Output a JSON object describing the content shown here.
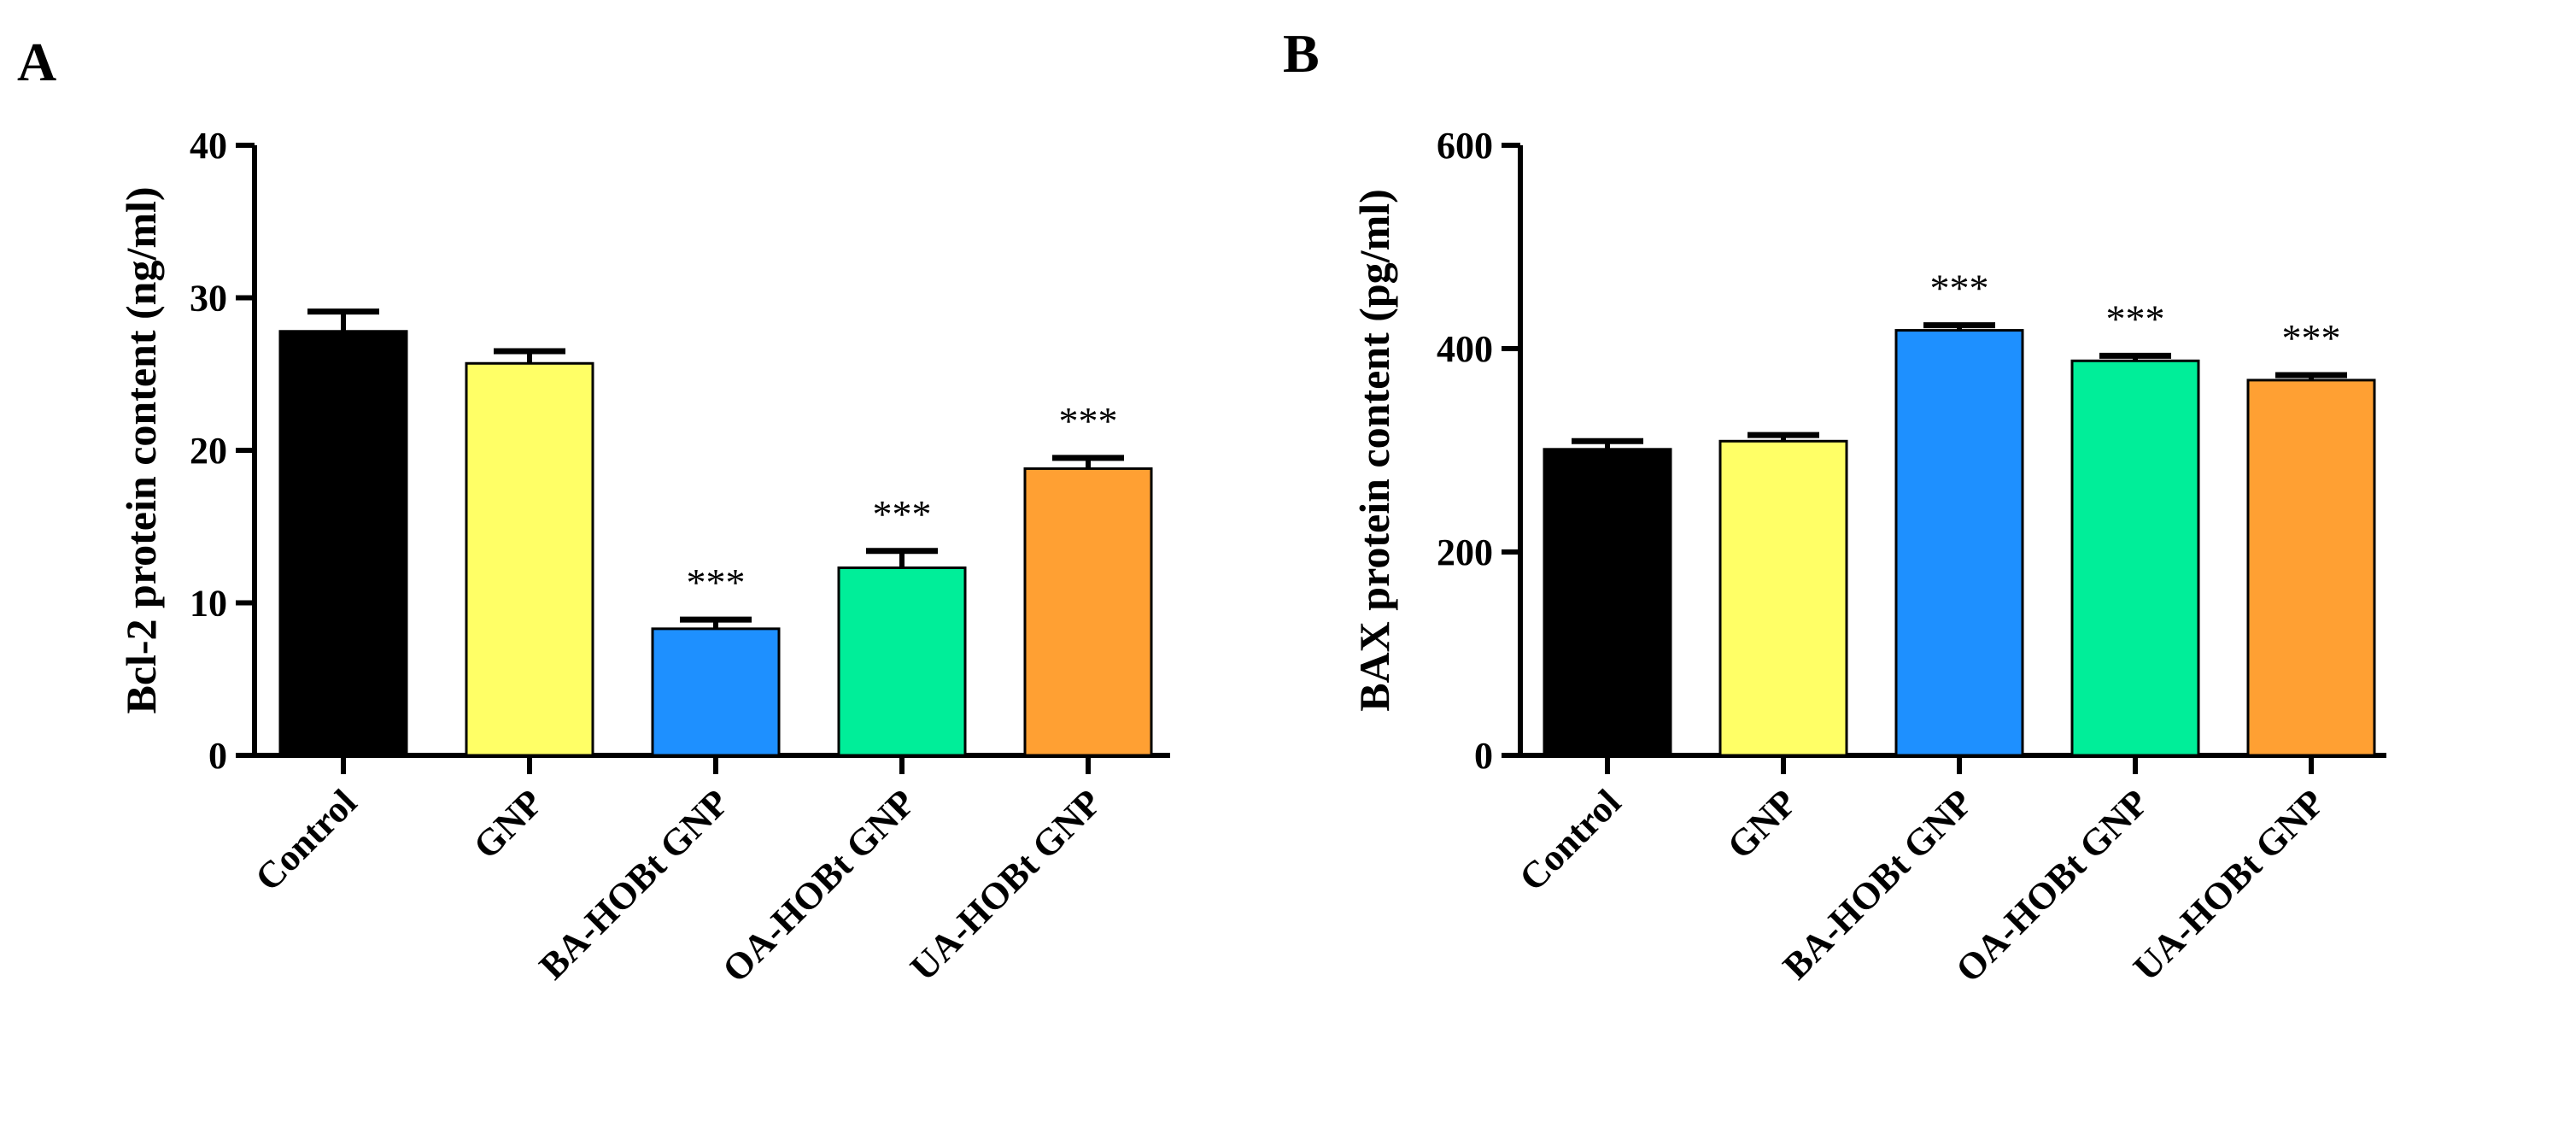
{
  "chart_data": [
    {
      "type": "bar",
      "panel": "A",
      "categories": [
        "Control",
        "GNP",
        "BA-HOBt GNP",
        "OA-HOBt GNP",
        "UA-HOBt GNP"
      ],
      "values": [
        27.8,
        25.7,
        8.3,
        12.3,
        18.8
      ],
      "errors": [
        1.3,
        0.8,
        0.6,
        1.1,
        0.7
      ],
      "colors": [
        "#000000",
        "#ffff66",
        "#1e90ff",
        "#00ee99",
        "#ffa033"
      ],
      "significance": [
        "",
        "",
        "***",
        "***",
        "***"
      ],
      "title": "",
      "xlabel": "",
      "ylabel": "Bcl-2 protein content (ng/ml)",
      "ylim": [
        0,
        40
      ],
      "yticks": [
        0,
        10,
        20,
        30,
        40
      ],
      "grid": false,
      "legend": "none"
    },
    {
      "type": "bar",
      "panel": "B",
      "categories": [
        "Control",
        "GNP",
        "BA-HOBt GNP",
        "OA-HOBt GNP",
        "UA-HOBt GNP"
      ],
      "values": [
        301,
        309,
        418,
        388,
        369
      ],
      "errors": [
        8,
        6,
        5,
        5,
        5
      ],
      "colors": [
        "#000000",
        "#ffff66",
        "#1e90ff",
        "#00ee99",
        "#ffa033"
      ],
      "significance": [
        "",
        "",
        "***",
        "***",
        "***"
      ],
      "title": "",
      "xlabel": "",
      "ylabel": "BAX protein content (pg/ml)",
      "ylim": [
        0,
        600
      ],
      "yticks": [
        0,
        200,
        400,
        600
      ],
      "grid": false,
      "legend": "none"
    }
  ]
}
